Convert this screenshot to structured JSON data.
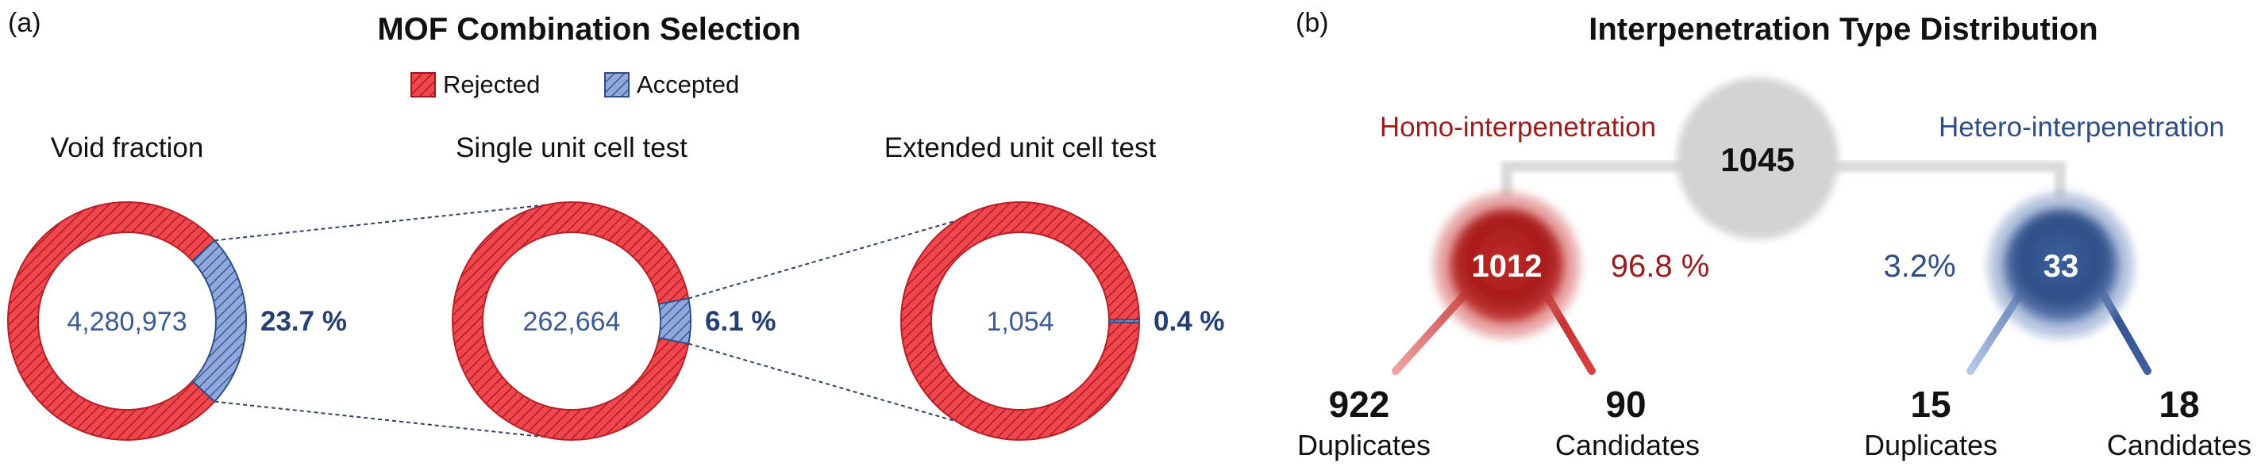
{
  "panel_a": {
    "label": "(a)",
    "title": "MOF Combination Selection",
    "legend": [
      {
        "name": "Rejected",
        "color": "#f0474e"
      },
      {
        "name": "Accepted",
        "color": "#8fa9dc"
      }
    ]
  },
  "panel_b": {
    "label": "(b)",
    "title": "Interpenetration Type Distribution",
    "total": "1045",
    "homo": {
      "label": "Homo-interpenetration",
      "count": "1012",
      "percent": "96.8 %",
      "color": "#9b1c1c"
    },
    "hetero": {
      "label": "Hetero-interpenetration",
      "count": "33",
      "percent": "3.2%",
      "color": "#2f4e86"
    },
    "leaves": [
      {
        "value": "922",
        "label": "Duplicates"
      },
      {
        "value": "90",
        "label": "Candidates"
      },
      {
        "value": "15",
        "label": "Duplicates"
      },
      {
        "value": "18",
        "label": "Candidates"
      }
    ]
  },
  "chart_data": [
    {
      "type": "pie",
      "title": "Void fraction",
      "center_label": "4,280,973",
      "categories": [
        "Rejected",
        "Accepted"
      ],
      "values": [
        76.3,
        23.7
      ],
      "accepted_label": "23.7 %"
    },
    {
      "type": "pie",
      "title": "Single unit cell test",
      "center_label": "262,664",
      "categories": [
        "Rejected",
        "Accepted"
      ],
      "values": [
        93.9,
        6.1
      ],
      "accepted_label": "6.1 %"
    },
    {
      "type": "pie",
      "title": "Extended unit cell test",
      "center_label": "1,054",
      "categories": [
        "Rejected",
        "Accepted"
      ],
      "values": [
        99.6,
        0.4
      ],
      "accepted_label": "0.4 %"
    }
  ]
}
